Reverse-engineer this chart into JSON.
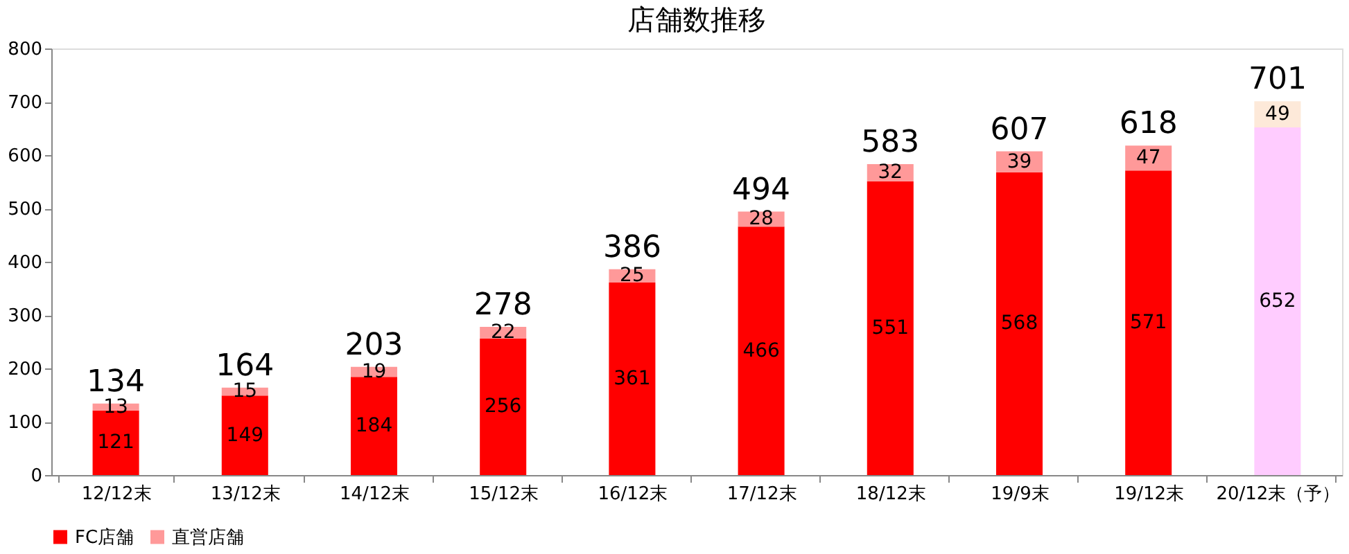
{
  "chart_data": {
    "type": "bar",
    "title": "店舗数推移",
    "stacked": true,
    "data_labels": true,
    "legend": "bottom",
    "grid": false,
    "categories": [
      "12/12末",
      "13/12末",
      "14/12末",
      "15/12末",
      "16/12末",
      "17/12末",
      "18/12末",
      "19/9末",
      "19/12末",
      "20/12末（予）"
    ],
    "series": [
      {
        "name": "FC店舗",
        "color": "#ff0000",
        "colors": [
          "#ff0000",
          "#ff0000",
          "#ff0000",
          "#ff0000",
          "#ff0000",
          "#ff0000",
          "#ff0000",
          "#ff0000",
          "#ff0000",
          "#ffccff"
        ],
        "values": [
          121,
          149,
          184,
          256,
          361,
          466,
          551,
          568,
          571,
          652
        ]
      },
      {
        "name": "直営店舗",
        "color": "#ff9999",
        "colors": [
          "#ff9999",
          "#ff9999",
          "#ff9999",
          "#ff9999",
          "#ff9999",
          "#ff9999",
          "#ff9999",
          "#ff9999",
          "#ff9999",
          "#fde9d9"
        ],
        "values": [
          13,
          15,
          19,
          22,
          25,
          28,
          32,
          39,
          47,
          49
        ]
      }
    ],
    "totals": [
      "134",
      "164",
      "203",
      "278",
      "386",
      "494",
      "583",
      "607",
      "618",
      "701"
    ],
    "ylim": [
      0,
      800
    ],
    "yticks": [
      0,
      100,
      200,
      300,
      400,
      500,
      600,
      700,
      800
    ]
  }
}
